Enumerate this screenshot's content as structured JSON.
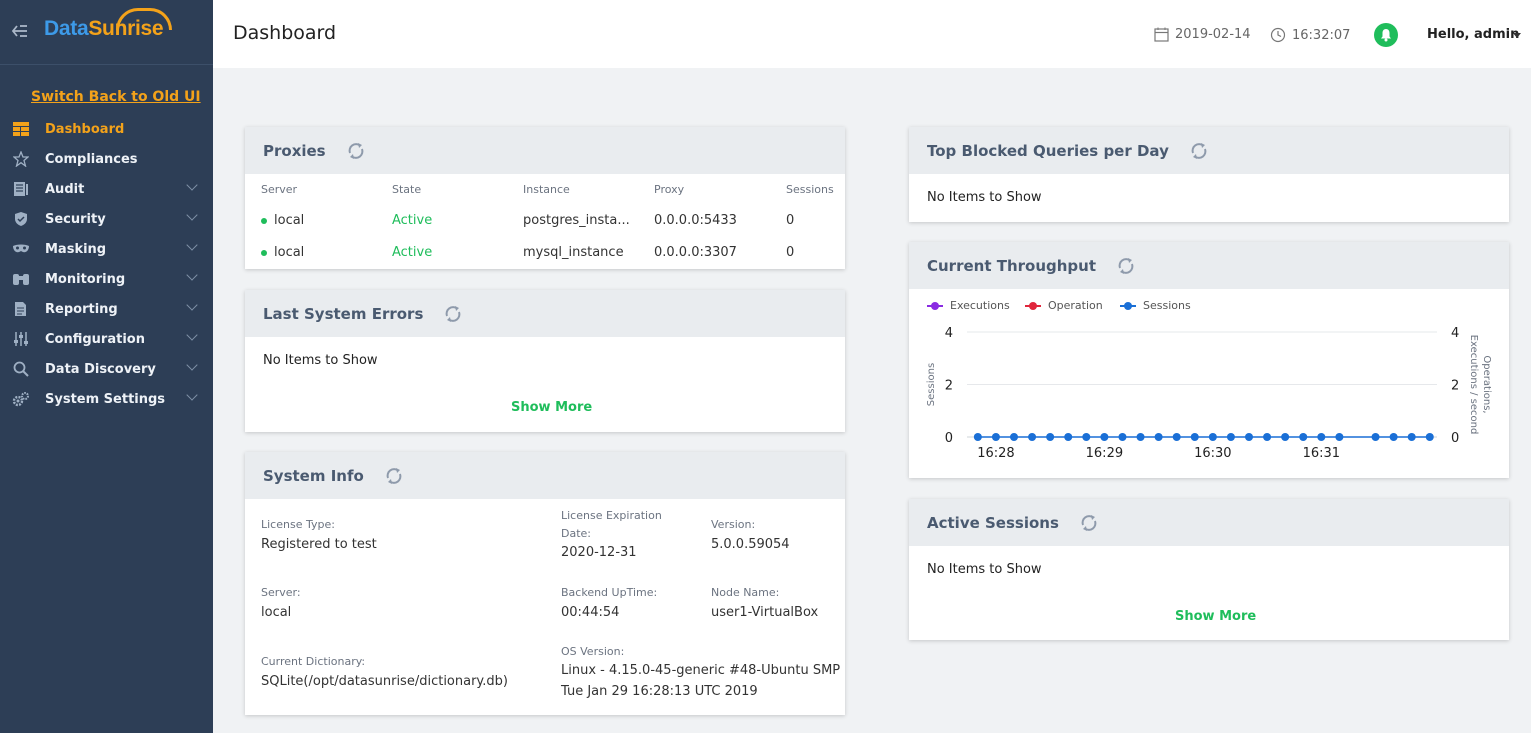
{
  "sidebar": {
    "logo_part1": "Data",
    "logo_part2": "Sunrise",
    "switch_link": "Switch Back to Old UI",
    "items": [
      {
        "label": "Dashboard",
        "icon": "dashboard-icon",
        "active": true,
        "expandable": false
      },
      {
        "label": "Compliances",
        "icon": "star-icon",
        "active": false,
        "expandable": false
      },
      {
        "label": "Audit",
        "icon": "audit-icon",
        "active": false,
        "expandable": true
      },
      {
        "label": "Security",
        "icon": "shield-icon",
        "active": false,
        "expandable": true
      },
      {
        "label": "Masking",
        "icon": "masking-icon",
        "active": false,
        "expandable": true
      },
      {
        "label": "Monitoring",
        "icon": "binoculars-icon",
        "active": false,
        "expandable": true
      },
      {
        "label": "Reporting",
        "icon": "report-icon",
        "active": false,
        "expandable": true
      },
      {
        "label": "Configuration",
        "icon": "sliders-icon",
        "active": false,
        "expandable": true
      },
      {
        "label": "Data Discovery",
        "icon": "search-icon",
        "active": false,
        "expandable": true
      },
      {
        "label": "System Settings",
        "icon": "gears-icon",
        "active": false,
        "expandable": true
      }
    ]
  },
  "header": {
    "title": "Dashboard",
    "date": "2019-02-14",
    "time": "16:32:07",
    "greeting": "Hello, admin"
  },
  "proxies": {
    "title": "Proxies",
    "columns": [
      "Server",
      "State",
      "Instance",
      "Proxy",
      "Sessions"
    ],
    "rows": [
      {
        "server": "local",
        "state": "Active",
        "instance": "postgres_insta...",
        "proxy": "0.0.0.0:5433",
        "sessions": "0"
      },
      {
        "server": "local",
        "state": "Active",
        "instance": "mysql_instance",
        "proxy": "0.0.0.0:3307",
        "sessions": "0"
      }
    ]
  },
  "errors": {
    "title": "Last System Errors",
    "empty": "No Items to Show",
    "show_more": "Show More"
  },
  "system_info": {
    "title": "System Info",
    "license_type_label": "License Type:",
    "license_type": "Registered to test",
    "license_exp_label_1": "License Expiration",
    "license_exp_label_2": "Date:",
    "license_exp": "2020-12-31",
    "version_label": "Version:",
    "version": "5.0.0.59054",
    "server_label": "Server:",
    "server": "local",
    "uptime_label": "Backend UpTime:",
    "uptime": "00:44:54",
    "node_label": "Node Name:",
    "node": "user1-VirtualBox",
    "dict_label": "Current Dictionary:",
    "dict": "SQLite(/opt/datasunrise/dictionary.db)",
    "os_label": "OS Version:",
    "os_line1": "Linux - 4.15.0-45-generic #48-Ubuntu SMP",
    "os_line2": "Tue Jan 29 16:28:13 UTC 2019"
  },
  "blocked": {
    "title": "Top Blocked Queries per Day",
    "empty": "No Items to Show"
  },
  "throughput": {
    "title": "Current Throughput"
  },
  "active_sessions": {
    "title": "Active Sessions",
    "empty": "No Items to Show",
    "show_more": "Show More"
  },
  "colors": {
    "accent": "#f3a21a",
    "green": "#1fbd5b",
    "sidebar": "#2d3e56",
    "executions": "#8a2be2",
    "operation": "#e0263c",
    "sessions": "#1a6fd6"
  },
  "chart_data": {
    "type": "line",
    "legend": [
      {
        "name": "Executions",
        "color": "#8a2be2"
      },
      {
        "name": "Operation",
        "color": "#e0263c"
      },
      {
        "name": "Sessions",
        "color": "#1a6fd6"
      }
    ],
    "ylabel_left": "Sessions",
    "ylabel_right_1": "Operations,",
    "ylabel_right_2": "Executions / second",
    "yticks": [
      "0",
      "2",
      "4"
    ],
    "ylim": [
      0,
      4
    ],
    "xticks": [
      "16:28",
      "16:29",
      "16:30",
      "16:31"
    ],
    "series": [
      {
        "name": "Sessions",
        "color": "#1a6fd6",
        "x": [
          "16:27:50",
          "16:28:00",
          "16:28:10",
          "16:28:20",
          "16:28:30",
          "16:28:40",
          "16:28:50",
          "16:29:00",
          "16:29:10",
          "16:29:20",
          "16:29:30",
          "16:29:40",
          "16:29:50",
          "16:30:00",
          "16:30:10",
          "16:30:20",
          "16:30:30",
          "16:30:40",
          "16:30:50",
          "16:31:00",
          "16:31:10",
          "16:31:30",
          "16:31:40",
          "16:31:50",
          "16:32:00"
        ],
        "values": [
          0,
          0,
          0,
          0,
          0,
          0,
          0,
          0,
          0,
          0,
          0,
          0,
          0,
          0,
          0,
          0,
          0,
          0,
          0,
          0,
          0,
          0,
          0,
          0,
          0
        ]
      }
    ]
  }
}
